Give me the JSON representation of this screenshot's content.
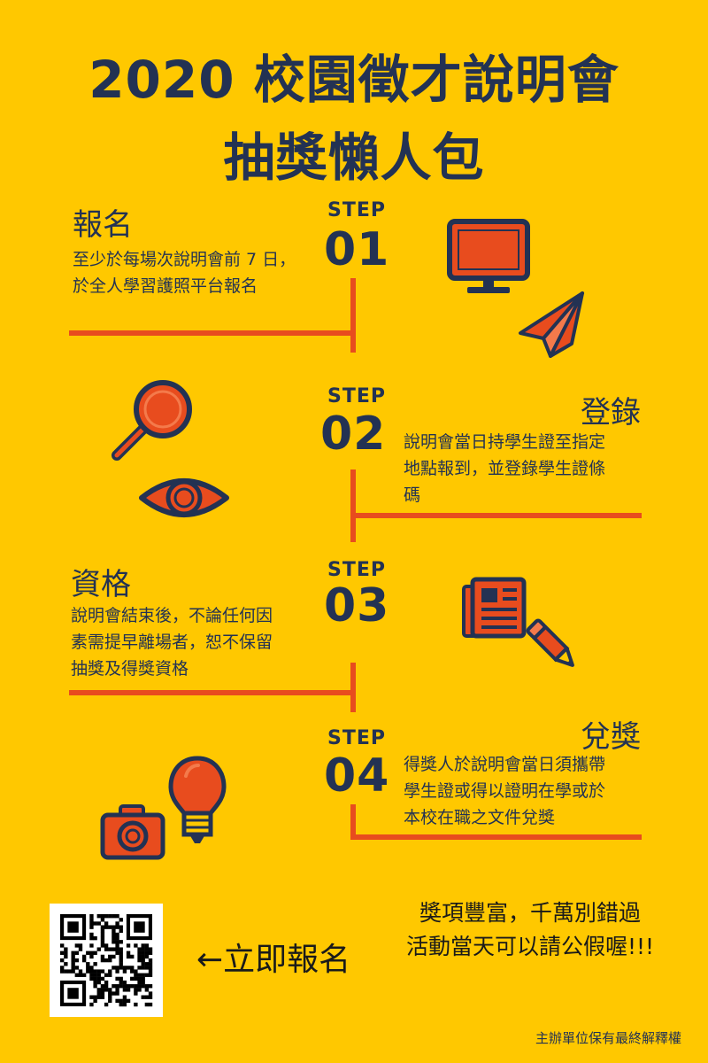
{
  "title": {
    "line1": "2020 校園徵才說明會",
    "line2": "抽獎懶人包"
  },
  "steps": [
    {
      "label": "STEP",
      "number": "01",
      "heading": "報名",
      "lines": [
        "至少於每場次說明會前 7 日，",
        "於全人學習護照平台報名"
      ]
    },
    {
      "label": "STEP",
      "number": "02",
      "heading": "登錄",
      "lines": [
        "說明會當日持學生證至指定",
        "地點報到，並登錄學生證條",
        "碼"
      ]
    },
    {
      "label": "STEP",
      "number": "03",
      "heading": "資格",
      "lines": [
        "說明會結束後，不論任何因",
        "素需提早離場者，恕不保留",
        "抽獎及得獎資格"
      ]
    },
    {
      "label": "STEP",
      "number": "04",
      "heading": "兌獎",
      "lines": [
        "得獎人於說明會當日須攜帶",
        "學生證或得以證明在學或於",
        "本校在職之文件兌獎"
      ]
    }
  ],
  "slogan": {
    "line1": "獎項豐富，千萬別錯過",
    "line2": "活動當天可以請公假喔!!!"
  },
  "register_label": "←立即報名",
  "footer": "主辦單位保有最終解釋權",
  "colors": {
    "background": "#FFC800",
    "navy": "#233253",
    "orange": "#E84C1E"
  },
  "icons": [
    "monitor-icon",
    "paper-plane-icon",
    "magnifier-icon",
    "eye-icon",
    "newspaper-icon",
    "pencil-icon",
    "camera-icon",
    "light-bulb-icon",
    "qr-code-icon"
  ]
}
